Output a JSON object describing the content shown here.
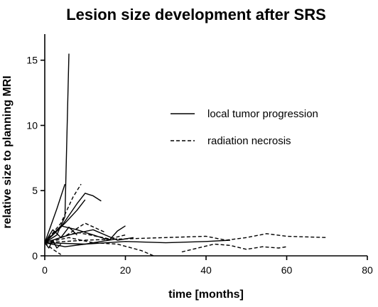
{
  "chart_data": {
    "type": "line",
    "title": "Lesion size development after SRS",
    "xlabel": "time [months]",
    "ylabel": "relative size to planning MRI",
    "xlim": [
      0,
      80
    ],
    "ylim": [
      0,
      17
    ],
    "xticks": [
      0,
      20,
      40,
      60,
      80
    ],
    "yticks": [
      0,
      5,
      10,
      15
    ],
    "grid": false,
    "legend_position": "right",
    "legend": [
      {
        "label": "local tumor progression",
        "style": "solid"
      },
      {
        "label": "radiation necrosis",
        "style": "dashed"
      }
    ],
    "colors": {
      "line": "#000000",
      "axis": "#000000"
    },
    "series": [
      {
        "group": "local tumor progression",
        "x": [
          0,
          3,
          5,
          6
        ],
        "y": [
          1,
          1.6,
          3.0,
          15.5
        ]
      },
      {
        "group": "local tumor progression",
        "x": [
          0,
          3,
          5
        ],
        "y": [
          1,
          3.6,
          5.5
        ]
      },
      {
        "group": "local tumor progression",
        "x": [
          0,
          4,
          8,
          10,
          12,
          14
        ],
        "y": [
          1,
          2.2,
          4.0,
          4.8,
          4.6,
          4.2
        ]
      },
      {
        "group": "local tumor progression",
        "x": [
          0,
          5,
          8,
          10
        ],
        "y": [
          1,
          2.5,
          3.5,
          4.3
        ]
      },
      {
        "group": "local tumor progression",
        "x": [
          0,
          2,
          4,
          6,
          8
        ],
        "y": [
          1,
          2.0,
          1.4,
          2.2,
          1.6
        ]
      },
      {
        "group": "local tumor progression",
        "x": [
          0,
          4,
          8,
          12,
          16,
          18,
          20
        ],
        "y": [
          1,
          2.3,
          2.0,
          1.6,
          1.2,
          1.9,
          2.3
        ]
      },
      {
        "group": "local tumor progression",
        "x": [
          0,
          6,
          12,
          18,
          22
        ],
        "y": [
          1,
          1.6,
          2.0,
          1.2,
          1.4
        ]
      },
      {
        "group": "local tumor progression",
        "x": [
          0,
          1,
          2,
          3,
          4
        ],
        "y": [
          1,
          0.6,
          1.2,
          0.6,
          0.9
        ]
      },
      {
        "group": "local tumor progression",
        "x": [
          0,
          10,
          20,
          30,
          40,
          46
        ],
        "y": [
          1,
          0.9,
          1.1,
          1.0,
          1.1,
          1.2
        ]
      },
      {
        "group": "local tumor progression",
        "x": [
          0,
          5,
          10,
          14,
          18
        ],
        "y": [
          1,
          0.7,
          0.9,
          1.1,
          1.3
        ]
      },
      {
        "group": "radiation necrosis",
        "x": [
          0,
          4,
          7,
          9
        ],
        "y": [
          1,
          2.5,
          4.5,
          5.5
        ]
      },
      {
        "group": "radiation necrosis",
        "x": [
          0,
          2,
          3,
          4
        ],
        "y": [
          1,
          0.5,
          0.3,
          0.1
        ]
      },
      {
        "group": "radiation necrosis",
        "x": [
          0,
          5,
          10,
          15
        ],
        "y": [
          1,
          1.5,
          2.5,
          1.8
        ]
      },
      {
        "group": "radiation necrosis",
        "x": [
          0,
          10,
          20,
          30,
          40,
          45,
          50,
          55,
          60,
          70
        ],
        "y": [
          1,
          1.2,
          1.3,
          1.4,
          1.5,
          1.2,
          1.4,
          1.7,
          1.5,
          1.4
        ]
      },
      {
        "group": "radiation necrosis",
        "x": [
          0,
          6,
          12,
          18,
          24,
          27
        ],
        "y": [
          1,
          1.4,
          1.0,
          0.9,
          0.4,
          0.0
        ]
      },
      {
        "group": "radiation necrosis",
        "x": [
          0,
          8,
          16,
          20
        ],
        "y": [
          1,
          1.8,
          1.3,
          1.6
        ]
      },
      {
        "group": "radiation necrosis",
        "x": [
          34,
          38,
          42,
          46,
          50,
          54,
          58,
          60
        ],
        "y": [
          0.3,
          0.6,
          0.9,
          0.8,
          0.5,
          0.7,
          0.6,
          0.7
        ]
      }
    ]
  }
}
